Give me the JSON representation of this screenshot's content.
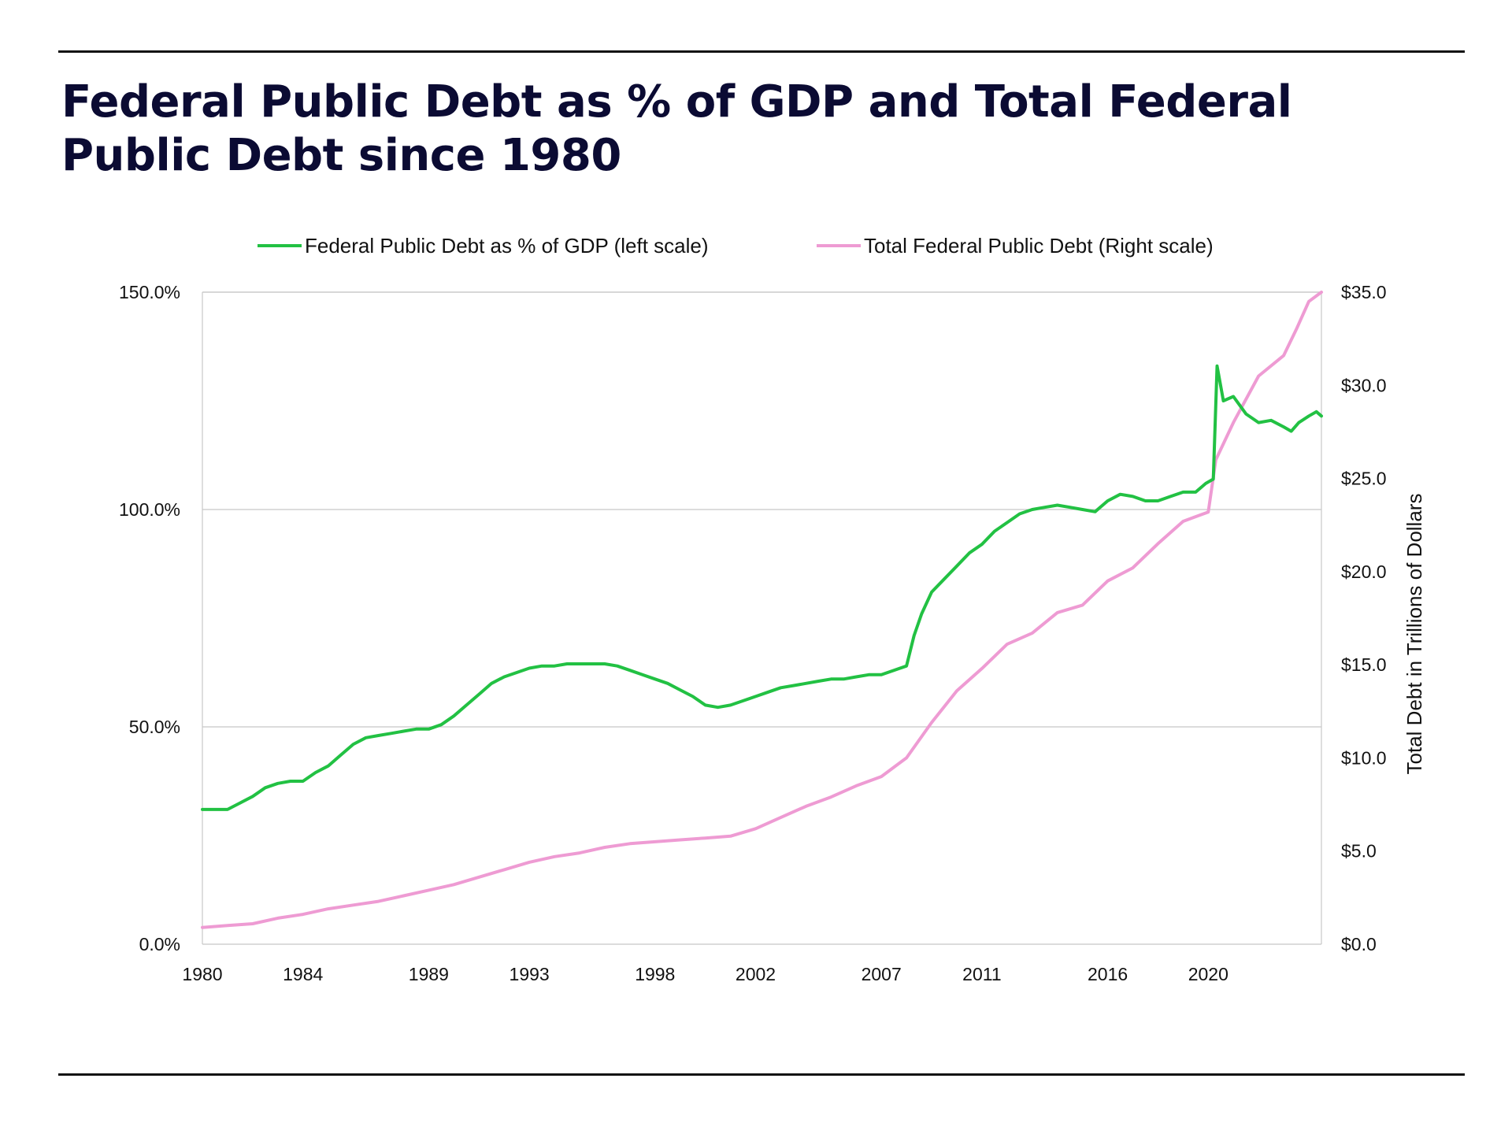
{
  "title": "Federal Public Debt as % of GDP and Total Federal Public Debt since 1980",
  "colors": {
    "pct_series": "#22c143",
    "total_series": "#ee9bd3",
    "grid": "#c8c8c8",
    "text": "#111111",
    "title": "#0b0b33"
  },
  "chart_data": {
    "type": "line",
    "title": "Federal Public Debt as % of GDP and Total Federal Public Debt since 1980",
    "legend": [
      {
        "label": "Federal Public Debt as % of GDP (left scale)",
        "color": "#22c143"
      },
      {
        "label": "Total Federal Public Debt (Right scale)",
        "color": "#ee9bd3"
      }
    ],
    "legend_position": "top-center",
    "grid": "horizontal",
    "x_ticks": [
      "1980",
      "1984",
      "1989",
      "1993",
      "1998",
      "2002",
      "2007",
      "2011",
      "2016",
      "2020"
    ],
    "x_range": [
      1980,
      2024.5
    ],
    "left_axis": {
      "ticks": [
        "150.0%",
        "100.0%",
        "50.0%",
        "0.0%"
      ],
      "tick_values": [
        150,
        100,
        50,
        0
      ],
      "ylim": [
        0,
        150
      ]
    },
    "right_axis": {
      "label": "Total Debt in Trillions of Dollars",
      "ticks": [
        "$35.0",
        "$30.0",
        "$25.0",
        "$20.0",
        "$15.0",
        "$10.0",
        "$5.0",
        "$0.0"
      ],
      "tick_values": [
        35,
        30,
        25,
        20,
        15,
        10,
        5,
        0
      ],
      "ylim": [
        0,
        35
      ]
    },
    "series": [
      {
        "name": "Federal Public Debt as % of GDP (left scale)",
        "axis": "left",
        "points": [
          [
            1980,
            31
          ],
          [
            1981,
            31
          ],
          [
            1981.5,
            32.5
          ],
          [
            1982,
            34
          ],
          [
            1982.5,
            36
          ],
          [
            1983,
            37
          ],
          [
            1983.5,
            37.5
          ],
          [
            1984,
            37.5
          ],
          [
            1984.5,
            39.5
          ],
          [
            1985,
            41
          ],
          [
            1985.5,
            43.5
          ],
          [
            1986,
            46
          ],
          [
            1986.5,
            47.5
          ],
          [
            1987,
            48
          ],
          [
            1987.5,
            48.5
          ],
          [
            1988,
            49
          ],
          [
            1988.5,
            49.5
          ],
          [
            1989,
            49.5
          ],
          [
            1989.5,
            50.5
          ],
          [
            1990,
            52.5
          ],
          [
            1990.5,
            55
          ],
          [
            1991,
            57.5
          ],
          [
            1991.5,
            60
          ],
          [
            1992,
            61.5
          ],
          [
            1992.5,
            62.5
          ],
          [
            1993,
            63.5
          ],
          [
            1993.5,
            64
          ],
          [
            1994,
            64
          ],
          [
            1994.5,
            64.5
          ],
          [
            1995,
            64.5
          ],
          [
            1995.5,
            64.5
          ],
          [
            1996,
            64.5
          ],
          [
            1996.5,
            64
          ],
          [
            1997,
            63
          ],
          [
            1997.5,
            62
          ],
          [
            1998,
            61
          ],
          [
            1998.5,
            60
          ],
          [
            1999,
            58.5
          ],
          [
            1999.5,
            57
          ],
          [
            2000,
            55
          ],
          [
            2000.5,
            54.5
          ],
          [
            2001,
            55
          ],
          [
            2001.5,
            56
          ],
          [
            2002,
            57
          ],
          [
            2002.5,
            58
          ],
          [
            2003,
            59
          ],
          [
            2003.5,
            59.5
          ],
          [
            2004,
            60
          ],
          [
            2004.5,
            60.5
          ],
          [
            2005,
            61
          ],
          [
            2005.5,
            61
          ],
          [
            2006,
            61.5
          ],
          [
            2006.5,
            62
          ],
          [
            2007,
            62
          ],
          [
            2007.5,
            63
          ],
          [
            2008,
            64
          ],
          [
            2008.3,
            71
          ],
          [
            2008.6,
            76
          ],
          [
            2009,
            81
          ],
          [
            2009.5,
            84
          ],
          [
            2010,
            87
          ],
          [
            2010.5,
            90
          ],
          [
            2011,
            92
          ],
          [
            2011.5,
            95
          ],
          [
            2012,
            97
          ],
          [
            2012.5,
            99
          ],
          [
            2013,
            100
          ],
          [
            2013.5,
            100.5
          ],
          [
            2014,
            101
          ],
          [
            2014.5,
            100.5
          ],
          [
            2015,
            100
          ],
          [
            2015.5,
            99.5
          ],
          [
            2016,
            102
          ],
          [
            2016.5,
            103.5
          ],
          [
            2017,
            103
          ],
          [
            2017.5,
            102
          ],
          [
            2018,
            102
          ],
          [
            2018.5,
            103
          ],
          [
            2019,
            104
          ],
          [
            2019.5,
            104
          ],
          [
            2019.9,
            106
          ],
          [
            2020.2,
            107
          ],
          [
            2020.35,
            133
          ],
          [
            2020.6,
            125
          ],
          [
            2021,
            126
          ],
          [
            2021.5,
            122
          ],
          [
            2022,
            120
          ],
          [
            2022.5,
            120.5
          ],
          [
            2023,
            119
          ],
          [
            2023.3,
            118
          ],
          [
            2023.6,
            120
          ],
          [
            2024,
            121.5
          ],
          [
            2024.3,
            122.5
          ],
          [
            2024.5,
            121.5
          ]
        ]
      },
      {
        "name": "Total Federal Public Debt (Right scale)",
        "axis": "right",
        "points": [
          [
            1980,
            0.9
          ],
          [
            1981,
            1.0
          ],
          [
            1982,
            1.1
          ],
          [
            1983,
            1.4
          ],
          [
            1984,
            1.6
          ],
          [
            1985,
            1.9
          ],
          [
            1986,
            2.1
          ],
          [
            1987,
            2.3
          ],
          [
            1988,
            2.6
          ],
          [
            1989,
            2.9
          ],
          [
            1990,
            3.2
          ],
          [
            1991,
            3.6
          ],
          [
            1992,
            4.0
          ],
          [
            1993,
            4.4
          ],
          [
            1994,
            4.7
          ],
          [
            1995,
            4.9
          ],
          [
            1996,
            5.2
          ],
          [
            1997,
            5.4
          ],
          [
            1998,
            5.5
          ],
          [
            1999,
            5.6
          ],
          [
            2000,
            5.7
          ],
          [
            2001,
            5.8
          ],
          [
            2002,
            6.2
          ],
          [
            2003,
            6.8
          ],
          [
            2004,
            7.4
          ],
          [
            2005,
            7.9
          ],
          [
            2006,
            8.5
          ],
          [
            2007,
            9.0
          ],
          [
            2008,
            10.0
          ],
          [
            2009,
            11.9
          ],
          [
            2010,
            13.6
          ],
          [
            2011,
            14.8
          ],
          [
            2012,
            16.1
          ],
          [
            2013,
            16.7
          ],
          [
            2014,
            17.8
          ],
          [
            2015,
            18.2
          ],
          [
            2016,
            19.5
          ],
          [
            2017,
            20.2
          ],
          [
            2018,
            21.5
          ],
          [
            2019,
            22.7
          ],
          [
            2020,
            23.2
          ],
          [
            2020.3,
            26.0
          ],
          [
            2021,
            28.0
          ],
          [
            2022,
            30.5
          ],
          [
            2023,
            31.6
          ],
          [
            2023.5,
            33.0
          ],
          [
            2024,
            34.5
          ],
          [
            2024.5,
            35.0
          ]
        ]
      }
    ]
  }
}
